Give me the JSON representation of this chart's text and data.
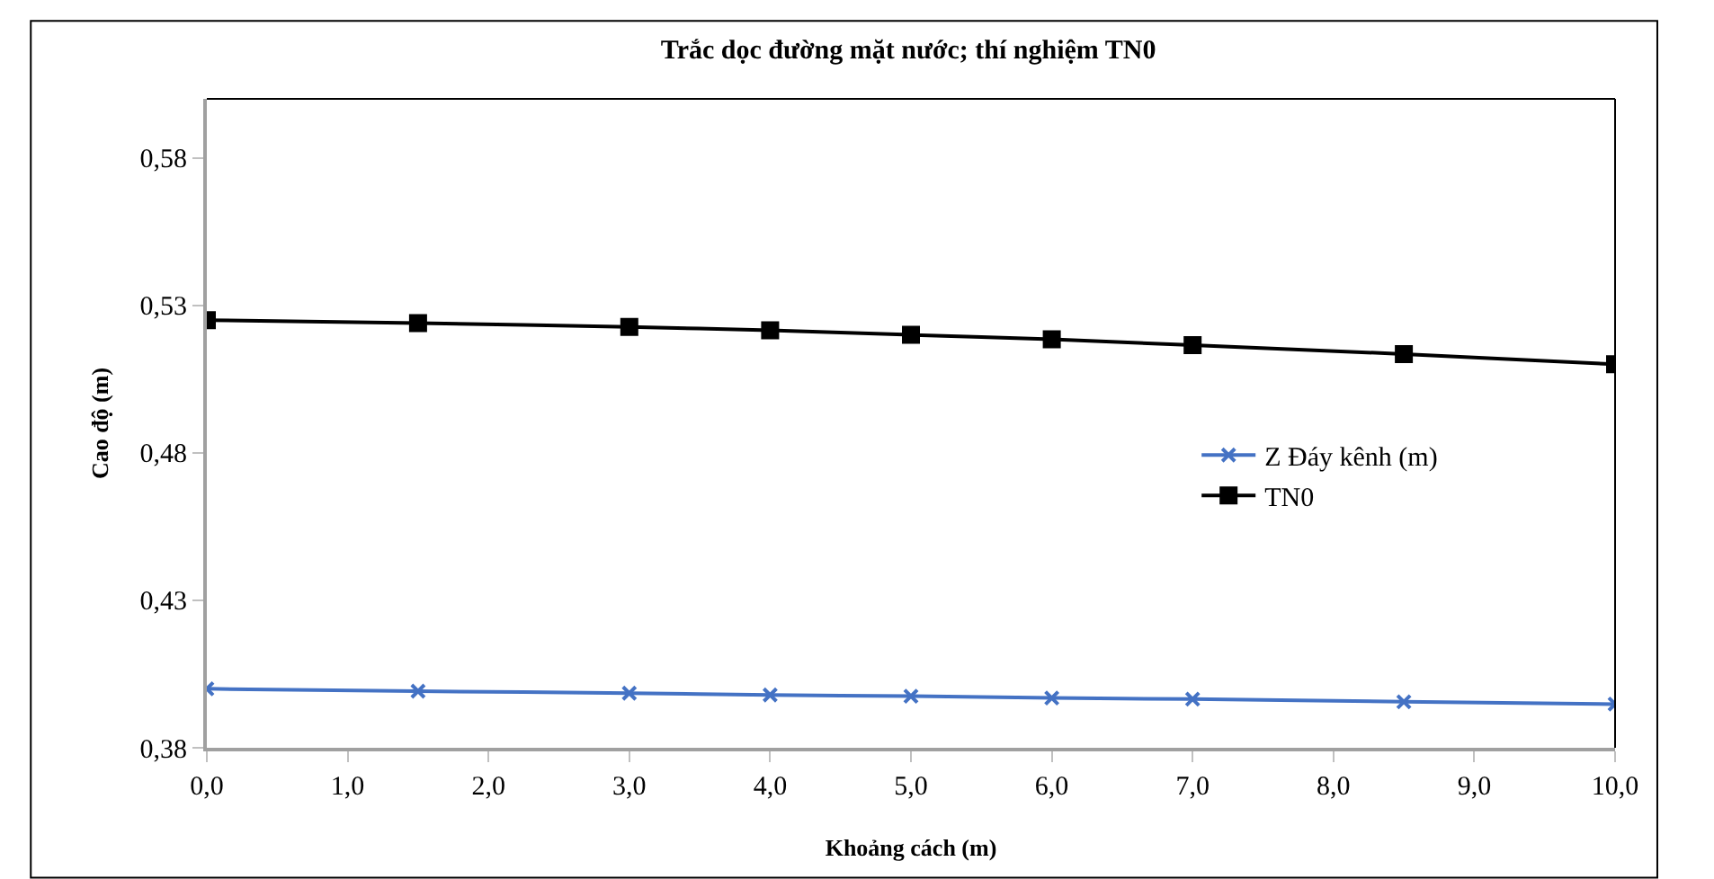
{
  "chart_data": {
    "type": "line",
    "title": "Trắc dọc đường mặt nước; thí nghiệm TN0",
    "xlabel": "Khoảng cách (m)",
    "ylabel": "Cao độ (m)",
    "x": [
      0,
      1.5,
      3,
      4,
      5,
      6,
      7,
      8.5,
      10
    ],
    "series": [
      {
        "name": "Z Đáy kênh (m)",
        "color": "#4472c4",
        "marker": "cross",
        "values": [
          0.4,
          0.3992,
          0.3985,
          0.3979,
          0.3975,
          0.3969,
          0.3965,
          0.3956,
          0.3948
        ]
      },
      {
        "name": "TN0",
        "color": "#000000",
        "marker": "square",
        "values": [
          0.525,
          0.524,
          0.5227,
          0.5215,
          0.52,
          0.5185,
          0.5165,
          0.5135,
          0.51
        ]
      }
    ],
    "xlim": [
      0,
      10
    ],
    "xticks": [
      {
        "value": 0,
        "label": "0,0"
      },
      {
        "value": 1,
        "label": "1,0"
      },
      {
        "value": 2,
        "label": "2,0"
      },
      {
        "value": 3,
        "label": "3,0"
      },
      {
        "value": 4,
        "label": "4,0"
      },
      {
        "value": 5,
        "label": "5,0"
      },
      {
        "value": 6,
        "label": "6,0"
      },
      {
        "value": 7,
        "label": "7,0"
      },
      {
        "value": 8,
        "label": "8,0"
      },
      {
        "value": 9,
        "label": "9,0"
      },
      {
        "value": 10,
        "label": "10,0"
      }
    ],
    "ylim": [
      0.38,
      0.6
    ],
    "yticks": [
      {
        "value": 0.38,
        "label": "0,38"
      },
      {
        "value": 0.43,
        "label": "0,43"
      },
      {
        "value": 0.48,
        "label": "0,48"
      },
      {
        "value": 0.53,
        "label": "0,53"
      },
      {
        "value": 0.58,
        "label": "0,58"
      }
    ],
    "legend": "right",
    "line_style": "solid"
  }
}
